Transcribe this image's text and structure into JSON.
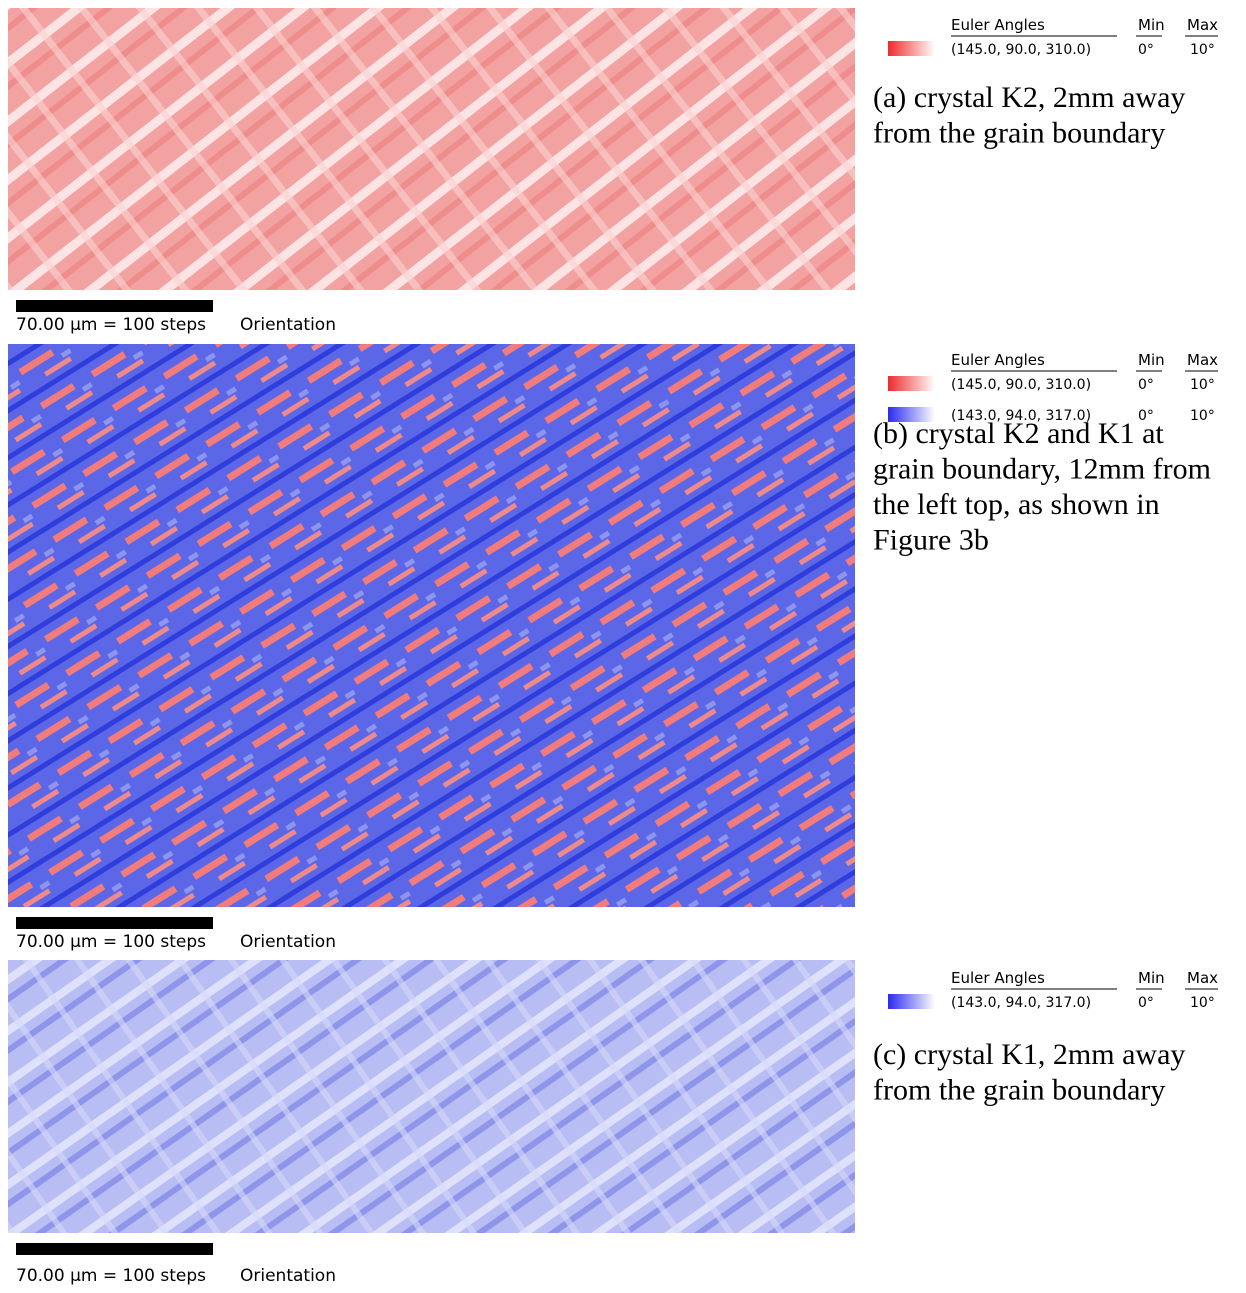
{
  "panels": [
    {
      "scale_label": "70.00 µm = 100 steps",
      "map_label": "Orientation",
      "legend": {
        "title": "Euler Angles",
        "min_header": "Min",
        "max_header": "Max",
        "rows": [
          {
            "angles": "(145.0, 90.0, 310.0)",
            "min": "0°",
            "max": "10°",
            "color": "#ee2a2a"
          }
        ]
      },
      "caption_lines": [
        "(a) crystal K2, 2mm away",
        "from the grain boundary"
      ]
    },
    {
      "scale_label": "70.00 µm = 100 steps",
      "map_label": "Orientation",
      "legend": {
        "title": "Euler Angles",
        "min_header": "Min",
        "max_header": "Max",
        "rows": [
          {
            "angles": "(145.0, 90.0, 310.0)",
            "min": "0°",
            "max": "10°",
            "color": "#ee2a2a"
          },
          {
            "angles": "(143.0, 94.0, 317.0)",
            "min": "0°",
            "max": "10°",
            "color": "#2a2aee"
          }
        ]
      },
      "caption_lines": [
        "(b) crystal K2 and K1 at",
        "grain boundary, 12mm from",
        "the left top, as shown in",
        "Figure 3b"
      ]
    },
    {
      "scale_label": "70.00 µm = 100 steps",
      "map_label": "Orientation",
      "legend": {
        "title": "Euler Angles",
        "min_header": "Min",
        "max_header": "Max",
        "rows": [
          {
            "angles": "(143.0, 94.0, 317.0)",
            "min": "0°",
            "max": "10°",
            "color": "#2a2aee"
          }
        ]
      },
      "caption_lines": [
        "(c) crystal K1, 2mm away",
        "from the grain boundary"
      ]
    }
  ]
}
